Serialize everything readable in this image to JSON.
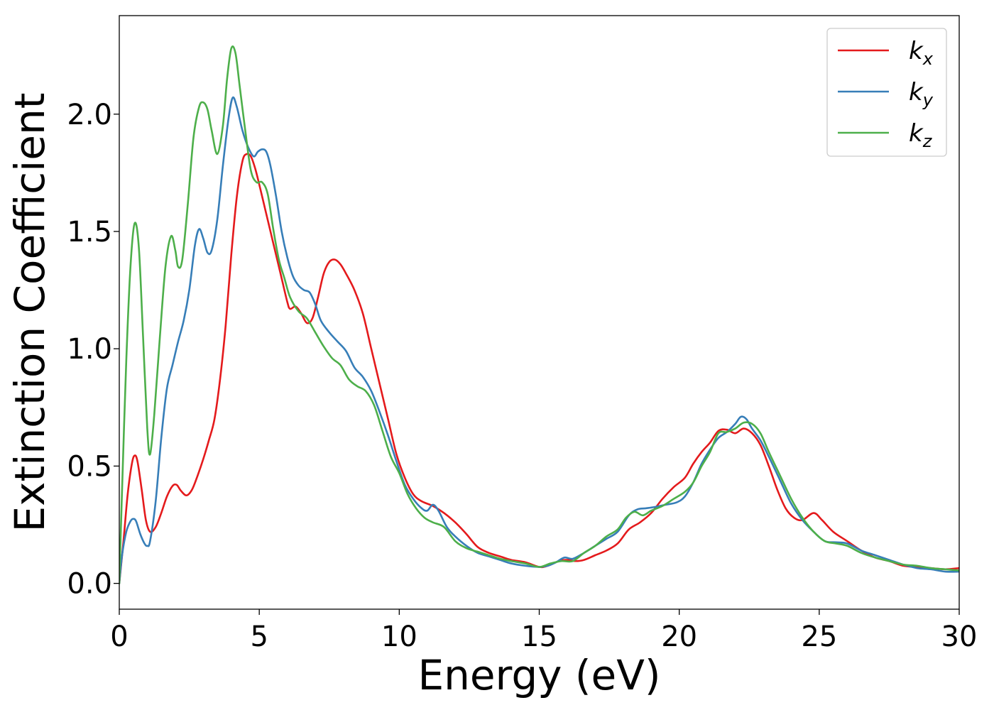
{
  "chart_data": {
    "type": "line",
    "title": "",
    "xlabel": "Energy (eV)",
    "ylabel": "Extinction Coefficient",
    "xlim": [
      0,
      30
    ],
    "ylim": [
      -0.11,
      2.42
    ],
    "xticks": [
      0,
      5,
      10,
      15,
      20,
      25,
      30
    ],
    "yticks": [
      0.0,
      0.5,
      1.0,
      1.5,
      2.0
    ],
    "xtick_labels": [
      "0",
      "5",
      "10",
      "15",
      "20",
      "25",
      "30"
    ],
    "ytick_labels": [
      "0.0",
      "0.5",
      "1.0",
      "1.5",
      "2.0"
    ],
    "grid": false,
    "legend_position": "top-right",
    "series": [
      {
        "name": "k",
        "subscript": "x",
        "color": "#e41a1c",
        "points": [
          [
            0,
            0
          ],
          [
            0.15,
            0.18
          ],
          [
            0.3,
            0.38
          ],
          [
            0.45,
            0.51
          ],
          [
            0.55,
            0.545
          ],
          [
            0.65,
            0.52
          ],
          [
            0.8,
            0.4
          ],
          [
            0.95,
            0.27
          ],
          [
            1.1,
            0.22
          ],
          [
            1.3,
            0.24
          ],
          [
            1.5,
            0.3
          ],
          [
            1.7,
            0.37
          ],
          [
            1.9,
            0.415
          ],
          [
            2.05,
            0.42
          ],
          [
            2.2,
            0.395
          ],
          [
            2.4,
            0.375
          ],
          [
            2.6,
            0.4
          ],
          [
            2.8,
            0.46
          ],
          [
            3.0,
            0.53
          ],
          [
            3.2,
            0.61
          ],
          [
            3.4,
            0.7
          ],
          [
            3.6,
            0.87
          ],
          [
            3.8,
            1.1
          ],
          [
            4.0,
            1.4
          ],
          [
            4.2,
            1.65
          ],
          [
            4.4,
            1.8
          ],
          [
            4.55,
            1.83
          ],
          [
            4.7,
            1.82
          ],
          [
            4.85,
            1.77
          ],
          [
            5.0,
            1.7
          ],
          [
            5.2,
            1.6
          ],
          [
            5.4,
            1.5
          ],
          [
            5.6,
            1.4
          ],
          [
            5.8,
            1.3
          ],
          [
            6.0,
            1.2
          ],
          [
            6.1,
            1.17
          ],
          [
            6.3,
            1.18
          ],
          [
            6.5,
            1.15
          ],
          [
            6.7,
            1.11
          ],
          [
            6.9,
            1.13
          ],
          [
            7.1,
            1.22
          ],
          [
            7.3,
            1.32
          ],
          [
            7.5,
            1.37
          ],
          [
            7.7,
            1.38
          ],
          [
            7.9,
            1.36
          ],
          [
            8.1,
            1.32
          ],
          [
            8.4,
            1.25
          ],
          [
            8.7,
            1.15
          ],
          [
            9.0,
            1.0
          ],
          [
            9.3,
            0.85
          ],
          [
            9.6,
            0.7
          ],
          [
            9.9,
            0.55
          ],
          [
            10.2,
            0.45
          ],
          [
            10.5,
            0.38
          ],
          [
            10.8,
            0.35
          ],
          [
            11.2,
            0.33
          ],
          [
            11.6,
            0.3
          ],
          [
            12.0,
            0.26
          ],
          [
            12.4,
            0.21
          ],
          [
            12.8,
            0.155
          ],
          [
            13.2,
            0.13
          ],
          [
            13.6,
            0.115
          ],
          [
            14.0,
            0.1
          ],
          [
            14.5,
            0.09
          ],
          [
            15.0,
            0.07
          ],
          [
            15.3,
            0.075
          ],
          [
            15.7,
            0.095
          ],
          [
            16.0,
            0.1
          ],
          [
            16.3,
            0.095
          ],
          [
            16.6,
            0.1
          ],
          [
            17.0,
            0.12
          ],
          [
            17.4,
            0.14
          ],
          [
            17.8,
            0.17
          ],
          [
            18.2,
            0.23
          ],
          [
            18.6,
            0.26
          ],
          [
            19.0,
            0.3
          ],
          [
            19.4,
            0.36
          ],
          [
            19.8,
            0.41
          ],
          [
            20.2,
            0.45
          ],
          [
            20.5,
            0.51
          ],
          [
            20.8,
            0.56
          ],
          [
            21.1,
            0.6
          ],
          [
            21.4,
            0.65
          ],
          [
            21.7,
            0.655
          ],
          [
            22.0,
            0.64
          ],
          [
            22.3,
            0.66
          ],
          [
            22.6,
            0.64
          ],
          [
            22.9,
            0.59
          ],
          [
            23.2,
            0.5
          ],
          [
            23.5,
            0.4
          ],
          [
            23.8,
            0.32
          ],
          [
            24.1,
            0.28
          ],
          [
            24.4,
            0.27
          ],
          [
            24.8,
            0.3
          ],
          [
            25.1,
            0.27
          ],
          [
            25.5,
            0.22
          ],
          [
            26.0,
            0.18
          ],
          [
            26.5,
            0.14
          ],
          [
            27.0,
            0.11
          ],
          [
            27.5,
            0.095
          ],
          [
            28.0,
            0.075
          ],
          [
            28.5,
            0.07
          ],
          [
            29.0,
            0.065
          ],
          [
            29.5,
            0.06
          ],
          [
            30.0,
            0.065
          ]
        ]
      },
      {
        "name": "k",
        "subscript": "y",
        "color": "#377eb8",
        "points": [
          [
            0,
            0
          ],
          [
            0.1,
            0.12
          ],
          [
            0.25,
            0.22
          ],
          [
            0.4,
            0.265
          ],
          [
            0.5,
            0.275
          ],
          [
            0.6,
            0.265
          ],
          [
            0.75,
            0.21
          ],
          [
            0.9,
            0.17
          ],
          [
            1.0,
            0.16
          ],
          [
            1.1,
            0.18
          ],
          [
            1.3,
            0.35
          ],
          [
            1.5,
            0.62
          ],
          [
            1.7,
            0.83
          ],
          [
            1.9,
            0.93
          ],
          [
            2.1,
            1.03
          ],
          [
            2.3,
            1.12
          ],
          [
            2.5,
            1.25
          ],
          [
            2.7,
            1.44
          ],
          [
            2.85,
            1.51
          ],
          [
            3.0,
            1.47
          ],
          [
            3.15,
            1.41
          ],
          [
            3.3,
            1.42
          ],
          [
            3.5,
            1.55
          ],
          [
            3.7,
            1.78
          ],
          [
            3.9,
            1.98
          ],
          [
            4.05,
            2.07
          ],
          [
            4.2,
            2.03
          ],
          [
            4.4,
            1.93
          ],
          [
            4.6,
            1.86
          ],
          [
            4.8,
            1.82
          ],
          [
            4.95,
            1.84
          ],
          [
            5.1,
            1.85
          ],
          [
            5.25,
            1.84
          ],
          [
            5.4,
            1.78
          ],
          [
            5.6,
            1.65
          ],
          [
            5.8,
            1.5
          ],
          [
            6.0,
            1.39
          ],
          [
            6.2,
            1.31
          ],
          [
            6.4,
            1.27
          ],
          [
            6.6,
            1.25
          ],
          [
            6.8,
            1.24
          ],
          [
            7.0,
            1.19
          ],
          [
            7.2,
            1.12
          ],
          [
            7.5,
            1.07
          ],
          [
            7.8,
            1.03
          ],
          [
            8.1,
            0.99
          ],
          [
            8.4,
            0.92
          ],
          [
            8.7,
            0.88
          ],
          [
            9.0,
            0.82
          ],
          [
            9.3,
            0.73
          ],
          [
            9.6,
            0.63
          ],
          [
            9.9,
            0.52
          ],
          [
            10.2,
            0.42
          ],
          [
            10.5,
            0.36
          ],
          [
            10.8,
            0.32
          ],
          [
            11.0,
            0.31
          ],
          [
            11.2,
            0.335
          ],
          [
            11.4,
            0.31
          ],
          [
            11.7,
            0.24
          ],
          [
            12.0,
            0.2
          ],
          [
            12.4,
            0.16
          ],
          [
            12.8,
            0.13
          ],
          [
            13.2,
            0.115
          ],
          [
            13.6,
            0.1
          ],
          [
            14.0,
            0.085
          ],
          [
            14.5,
            0.075
          ],
          [
            15.0,
            0.07
          ],
          [
            15.3,
            0.075
          ],
          [
            15.6,
            0.09
          ],
          [
            15.9,
            0.11
          ],
          [
            16.2,
            0.105
          ],
          [
            16.6,
            0.13
          ],
          [
            17.0,
            0.16
          ],
          [
            17.4,
            0.19
          ],
          [
            17.8,
            0.22
          ],
          [
            18.2,
            0.29
          ],
          [
            18.5,
            0.315
          ],
          [
            18.8,
            0.32
          ],
          [
            19.1,
            0.325
          ],
          [
            19.5,
            0.335
          ],
          [
            19.9,
            0.345
          ],
          [
            20.2,
            0.37
          ],
          [
            20.5,
            0.43
          ],
          [
            20.8,
            0.51
          ],
          [
            21.1,
            0.57
          ],
          [
            21.4,
            0.62
          ],
          [
            21.7,
            0.645
          ],
          [
            22.0,
            0.68
          ],
          [
            22.2,
            0.71
          ],
          [
            22.4,
            0.7
          ],
          [
            22.6,
            0.66
          ],
          [
            22.9,
            0.61
          ],
          [
            23.2,
            0.54
          ],
          [
            23.6,
            0.44
          ],
          [
            24.0,
            0.34
          ],
          [
            24.4,
            0.27
          ],
          [
            24.8,
            0.22
          ],
          [
            25.2,
            0.18
          ],
          [
            25.6,
            0.175
          ],
          [
            26.0,
            0.17
          ],
          [
            26.5,
            0.14
          ],
          [
            27.0,
            0.12
          ],
          [
            27.5,
            0.1
          ],
          [
            28.0,
            0.08
          ],
          [
            28.5,
            0.065
          ],
          [
            29.0,
            0.06
          ],
          [
            29.5,
            0.05
          ],
          [
            30.0,
            0.05
          ]
        ]
      },
      {
        "name": "k",
        "subscript": "z",
        "color": "#4daf4a",
        "points": [
          [
            0,
            0
          ],
          [
            0.1,
            0.4
          ],
          [
            0.25,
            0.95
          ],
          [
            0.4,
            1.35
          ],
          [
            0.55,
            1.535
          ],
          [
            0.7,
            1.43
          ],
          [
            0.85,
            1.05
          ],
          [
            1.0,
            0.66
          ],
          [
            1.1,
            0.55
          ],
          [
            1.25,
            0.72
          ],
          [
            1.45,
            1.05
          ],
          [
            1.65,
            1.35
          ],
          [
            1.85,
            1.48
          ],
          [
            2.0,
            1.42
          ],
          [
            2.1,
            1.35
          ],
          [
            2.25,
            1.38
          ],
          [
            2.45,
            1.62
          ],
          [
            2.65,
            1.9
          ],
          [
            2.85,
            2.03
          ],
          [
            3.0,
            2.05
          ],
          [
            3.15,
            2.02
          ],
          [
            3.3,
            1.93
          ],
          [
            3.5,
            1.83
          ],
          [
            3.7,
            1.95
          ],
          [
            3.85,
            2.15
          ],
          [
            4.0,
            2.28
          ],
          [
            4.15,
            2.26
          ],
          [
            4.3,
            2.12
          ],
          [
            4.5,
            1.93
          ],
          [
            4.7,
            1.76
          ],
          [
            4.9,
            1.71
          ],
          [
            5.1,
            1.71
          ],
          [
            5.3,
            1.66
          ],
          [
            5.5,
            1.51
          ],
          [
            5.7,
            1.38
          ],
          [
            5.9,
            1.3
          ],
          [
            6.1,
            1.22
          ],
          [
            6.4,
            1.16
          ],
          [
            6.7,
            1.13
          ],
          [
            7.0,
            1.07
          ],
          [
            7.3,
            1.01
          ],
          [
            7.6,
            0.96
          ],
          [
            7.9,
            0.93
          ],
          [
            8.2,
            0.87
          ],
          [
            8.5,
            0.84
          ],
          [
            8.8,
            0.82
          ],
          [
            9.1,
            0.76
          ],
          [
            9.4,
            0.65
          ],
          [
            9.7,
            0.54
          ],
          [
            10.0,
            0.47
          ],
          [
            10.3,
            0.38
          ],
          [
            10.6,
            0.32
          ],
          [
            10.9,
            0.28
          ],
          [
            11.2,
            0.26
          ],
          [
            11.6,
            0.24
          ],
          [
            12.0,
            0.18
          ],
          [
            12.4,
            0.15
          ],
          [
            12.8,
            0.135
          ],
          [
            13.2,
            0.12
          ],
          [
            13.6,
            0.105
          ],
          [
            14.0,
            0.095
          ],
          [
            14.5,
            0.085
          ],
          [
            15.0,
            0.07
          ],
          [
            15.4,
            0.085
          ],
          [
            15.8,
            0.095
          ],
          [
            16.2,
            0.095
          ],
          [
            16.6,
            0.13
          ],
          [
            17.0,
            0.16
          ],
          [
            17.4,
            0.2
          ],
          [
            17.8,
            0.23
          ],
          [
            18.1,
            0.28
          ],
          [
            18.4,
            0.305
          ],
          [
            18.7,
            0.29
          ],
          [
            19.0,
            0.31
          ],
          [
            19.4,
            0.33
          ],
          [
            19.8,
            0.36
          ],
          [
            20.2,
            0.39
          ],
          [
            20.5,
            0.43
          ],
          [
            20.8,
            0.5
          ],
          [
            21.1,
            0.56
          ],
          [
            21.4,
            0.64
          ],
          [
            21.7,
            0.645
          ],
          [
            22.0,
            0.66
          ],
          [
            22.3,
            0.685
          ],
          [
            22.6,
            0.68
          ],
          [
            22.9,
            0.64
          ],
          [
            23.2,
            0.56
          ],
          [
            23.6,
            0.46
          ],
          [
            24.0,
            0.36
          ],
          [
            24.4,
            0.28
          ],
          [
            24.8,
            0.22
          ],
          [
            25.2,
            0.18
          ],
          [
            25.6,
            0.17
          ],
          [
            26.0,
            0.16
          ],
          [
            26.5,
            0.13
          ],
          [
            27.0,
            0.11
          ],
          [
            27.5,
            0.095
          ],
          [
            28.0,
            0.08
          ],
          [
            28.5,
            0.075
          ],
          [
            29.0,
            0.065
          ],
          [
            29.5,
            0.06
          ],
          [
            30.0,
            0.055
          ]
        ]
      }
    ]
  }
}
